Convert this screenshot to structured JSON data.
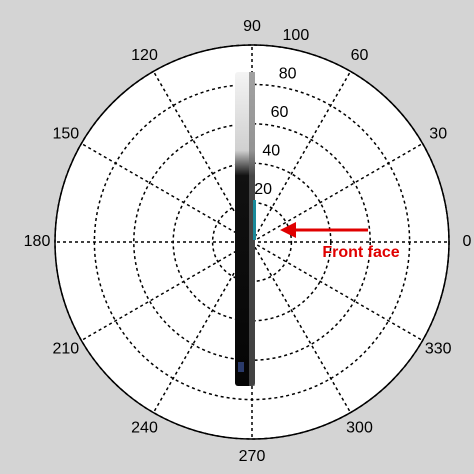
{
  "chart_data": {
    "type": "polar",
    "thetaticks": [
      0,
      30,
      60,
      90,
      120,
      150,
      180,
      210,
      240,
      270,
      300,
      330
    ],
    "rlim": [
      0,
      100
    ],
    "rticks": [
      20,
      40,
      60,
      80,
      100
    ],
    "grid": true,
    "annotations": [
      {
        "text": "Front face",
        "color": "#e00000"
      }
    ]
  }
}
